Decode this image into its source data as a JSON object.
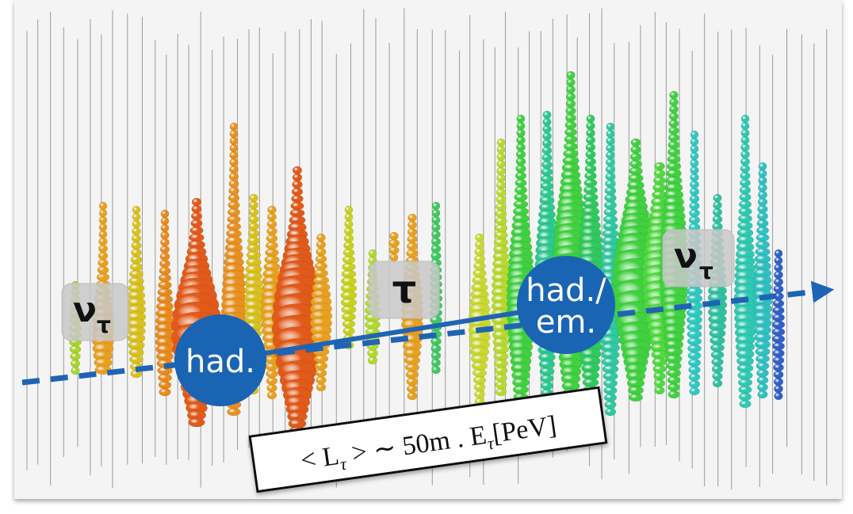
{
  "labels": [
    {
      "symbol": "ν",
      "subscript": "τ"
    },
    {
      "symbol": "τ"
    },
    {
      "symbol": "ν",
      "subscript": "τ"
    }
  ],
  "vertices": [
    {
      "lines": [
        "had."
      ]
    },
    {
      "lines": [
        "had./",
        "em."
      ]
    }
  ],
  "formula": {
    "pre": "< L",
    "sub1": "τ",
    "mid": " > ∼ 50m . E",
    "sub2": "τ",
    "post": "[PeV]"
  }
}
